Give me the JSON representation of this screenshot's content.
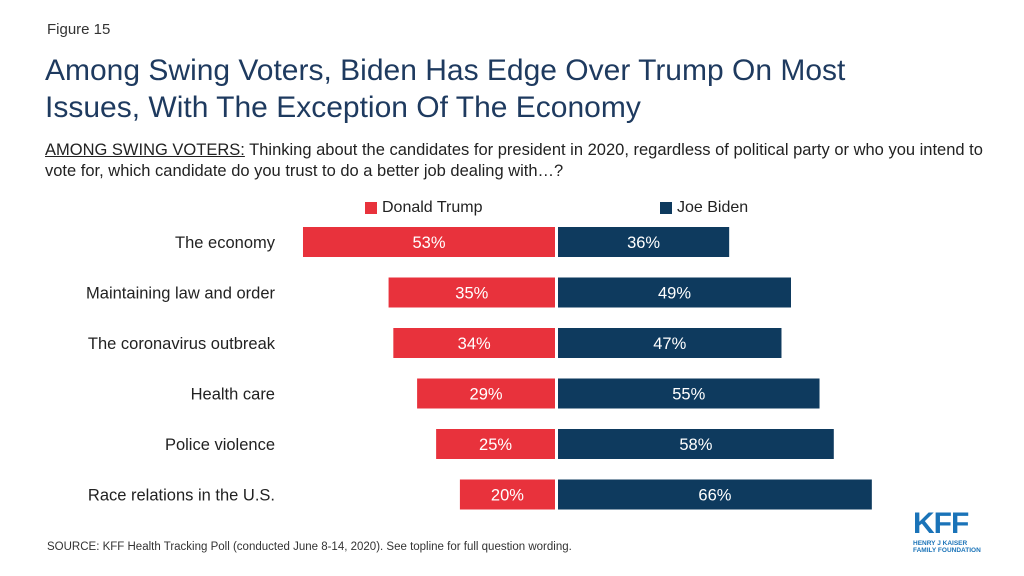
{
  "figure_label": "Figure 15",
  "title": "Among Swing Voters, Biden Has Edge Over Trump On Most Issues, With The Exception Of The Economy",
  "subtitle_lead": "AMONG SWING VOTERS:",
  "subtitle_text": " Thinking about the candidates for president in 2020, regardless of political party or who you intend to vote for, which candidate do you trust to do a better job dealing with…?",
  "source": "SOURCE: KFF Health Tracking Poll (conducted June 8-14, 2020). See topline for full question wording.",
  "logo": {
    "mark": "KFF",
    "line1": "HENRY J KAISER",
    "line2": "FAMILY FOUNDATION"
  },
  "colors": {
    "trump": "#e8323c",
    "biden": "#0e3a5e"
  },
  "chart_data": {
    "type": "bar",
    "orientation": "horizontal-diverging",
    "categories": [
      "The economy",
      "Maintaining law and order",
      "The coronavirus outbreak",
      "Health care",
      "Police violence",
      "Race relations in the U.S."
    ],
    "series": [
      {
        "name": "Donald Trump",
        "values": [
          53,
          35,
          34,
          29,
          25,
          20
        ],
        "labels": [
          "53%",
          "35%",
          "34%",
          "29%",
          "25%",
          "20%"
        ]
      },
      {
        "name": "Joe Biden",
        "values": [
          36,
          49,
          47,
          55,
          58,
          66
        ],
        "labels": [
          "36%",
          "49%",
          "47%",
          "55%",
          "58%",
          "66%"
        ]
      }
    ],
    "legend": "top"
  }
}
